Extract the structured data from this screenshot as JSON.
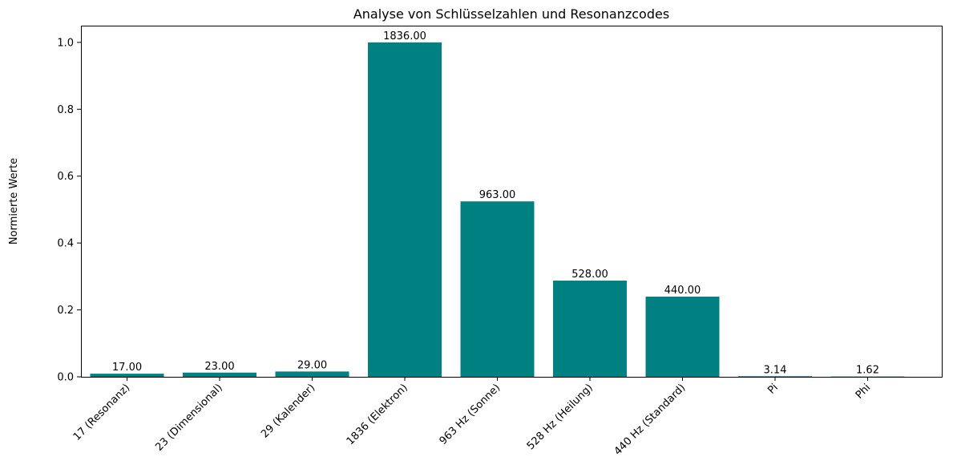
{
  "chart_data": {
    "type": "bar",
    "title": "Analyse von Schlüsselzahlen und Resonanzcodes",
    "xlabel": "",
    "ylabel": "Normierte Werte",
    "categories": [
      "17 (Resonanz)",
      "23 (Dimensional)",
      "29 (Kalender)",
      "1836 (Elektron)",
      "963 Hz (Sonne)",
      "528 Hz (Heilung)",
      "440 Hz (Standard)",
      "Pi",
      "Phi"
    ],
    "values": [
      0.00926,
      0.01253,
      0.0158,
      1.0,
      0.5245,
      0.28758,
      0.23965,
      0.00171,
      0.00088
    ],
    "data_labels": [
      "17.00",
      "23.00",
      "29.00",
      "1836.00",
      "963.00",
      "528.00",
      "440.00",
      "3.14",
      "1.62"
    ],
    "y_ticks": [
      "0.0",
      "0.2",
      "0.4",
      "0.6",
      "0.8",
      "1.0"
    ],
    "ylim": [
      0,
      1.05
    ],
    "bar_color": "#008080",
    "grid": false,
    "legend": "none"
  }
}
